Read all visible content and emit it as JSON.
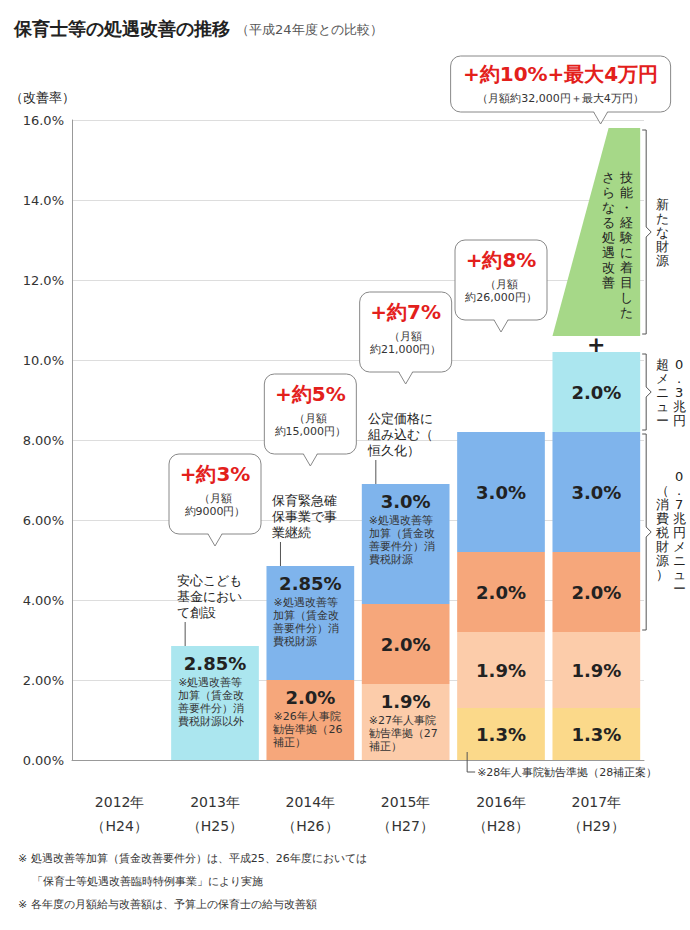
{
  "chart_data": {
    "type": "bar",
    "title": "保育士等の処遇改善の推移",
    "subtitle": "（平成24年度との比較）",
    "y_label": "（改善率）",
    "categories": [
      "2012年\n（H24）",
      "2013年\n（H25）",
      "2014年\n（H26）",
      "2015年\n（H27）",
      "2016年\n（H28）",
      "2017年\n（H29）"
    ],
    "stacked": true,
    "data_labels": true,
    "grid": true,
    "ylim": [
      0,
      16
    ],
    "yticks": [
      {
        "value": 0,
        "label": "0.00%"
      },
      {
        "value": 2,
        "label": "2.00%"
      },
      {
        "value": 4,
        "label": "4.00%"
      },
      {
        "value": 6,
        "label": "6.00%"
      },
      {
        "value": 8,
        "label": "8.00%"
      },
      {
        "value": 10,
        "label": "10.0%"
      },
      {
        "value": 12,
        "label": "12.0%"
      },
      {
        "value": 14,
        "label": "14.0%"
      },
      {
        "value": 16,
        "label": "16.0%"
      }
    ],
    "series": [
      {
        "color": "#fbd98a",
        "values": [
          null,
          null,
          null,
          null,
          1.3,
          1.3
        ],
        "value_labels": [
          null,
          null,
          null,
          null,
          "1.3%",
          "1.3%"
        ],
        "notes": [
          null,
          null,
          null,
          null,
          null,
          null
        ]
      },
      {
        "color": "#fcccaa",
        "values": [
          null,
          null,
          null,
          1.9,
          1.9,
          1.9
        ],
        "value_labels": [
          null,
          null,
          null,
          "1.9%",
          "1.9%",
          "1.9%"
        ],
        "notes": [
          null,
          null,
          null,
          "※27年人事院勧告準拠（27補正）",
          null,
          null
        ]
      },
      {
        "color": "#f6a77b",
        "values": [
          null,
          null,
          2.0,
          2.0,
          2.0,
          2.0
        ],
        "value_labels": [
          null,
          null,
          "2.0%",
          "2.0%",
          "2.0%",
          "2.0%"
        ],
        "notes": [
          null,
          null,
          "※26年人事院勧告準拠（26補正）",
          null,
          null,
          null
        ]
      },
      {
        "color": "#7fb4ec",
        "values": [
          null,
          null,
          2.85,
          3.0,
          3.0,
          3.0
        ],
        "value_labels": [
          null,
          null,
          "2.85%",
          "3.0%",
          "3.0%",
          "3.0%"
        ],
        "notes": [
          null,
          null,
          "※処遇改善等加算（賃金改善要件分）消費税財源",
          "※処遇改善等加算（賃金改善要件分）消費税財源",
          null,
          null
        ]
      },
      {
        "color": "#abe6ef",
        "values": [
          null,
          2.85,
          null,
          null,
          null,
          2.0
        ],
        "value_labels": [
          null,
          "2.85%",
          null,
          null,
          null,
          "2.0%"
        ],
        "notes": [
          null,
          "※処遇改善等加算（賃金改善要件分）消費税財源以外",
          null,
          null,
          null,
          null
        ]
      }
    ],
    "new_funding": {
      "category": "2017年\n（H29）",
      "from": 10.6,
      "to": 15.8,
      "color": "#a6d888",
      "text": [
        "技能・経験に着目した",
        "さらなる処遇改善"
      ]
    },
    "plus_sign": "+",
    "callouts": [
      {
        "category": "2013年\n（H25）",
        "main": "+約3%",
        "sub": "（月額\n約9000円）",
        "note": "安心こども基金において創設"
      },
      {
        "category": "2014年\n（H26）",
        "main": "+約5%",
        "sub": "（月額\n約15,000円）",
        "note": "保育緊急確保事業で事業継続"
      },
      {
        "category": "2015年\n（H27）",
        "main": "+約7%",
        "sub": "（月額\n約21,000円）",
        "note": "公定価格に組み込む（恒久化）"
      },
      {
        "category": "2016年\n（H28）",
        "main": "+約8%",
        "sub": "（月額\n約26,000円）"
      },
      {
        "category": "2017年\n（H29）",
        "main": "+約10%+最大4万円",
        "sub": "（月額約32,000円＋最大4万円）"
      }
    ],
    "braces": [
      {
        "text": [
          "0.7兆円メニュー",
          "（消費税財源）"
        ]
      },
      {
        "text": [
          "0.3兆円",
          "超メニュー"
        ]
      },
      {
        "text": [
          "新たな財源"
        ]
      }
    ],
    "bar_pointer_note": {
      "category": "2016年\n（H28）",
      "text": "※28年人事院勧告準拠（28補正案）"
    },
    "footnotes": [
      "※ 処遇改善等加算（賃金改善要件分）は、平成25、26年度においては",
      "「保育士等処遇改善臨時特例事業」により実施",
      "※ 各年度の月額給与改善額は、予算上の保育士の給与改善額"
    ]
  }
}
